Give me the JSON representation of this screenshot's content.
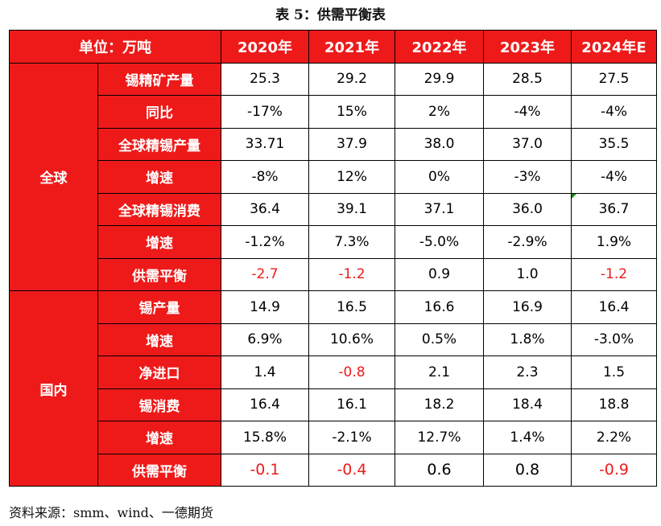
{
  "caption": "表 5：供需平衡表",
  "header": {
    "unit_label": "单位：万吨",
    "years": [
      "2020年",
      "2021年",
      "2022年",
      "2023年",
      "2024年E"
    ]
  },
  "groups": [
    {
      "name": "全球",
      "rows": [
        {
          "label": "锡精矿产量",
          "values": [
            "25.3",
            "29.2",
            "29.9",
            "28.5",
            "27.5"
          ]
        },
        {
          "label": "同比",
          "values": [
            "-17%",
            "15%",
            "2%",
            "-4%",
            "-4%"
          ]
        },
        {
          "label": "全球精锡产量",
          "values": [
            "33.71",
            "37.9",
            "38.0",
            "37.0",
            "35.5"
          ]
        },
        {
          "label": "增速",
          "values": [
            "-8%",
            "12%",
            "0%",
            "-3%",
            "-4%"
          ]
        },
        {
          "label": "全球精锡消费",
          "values": [
            "36.4",
            "39.1",
            "37.1",
            "36.0",
            "36.7"
          ]
        },
        {
          "label": "增速",
          "values": [
            "-1.2%",
            "7.3%",
            "-5.0%",
            "-2.9%",
            "1.9%"
          ]
        },
        {
          "label": "供需平衡",
          "values": [
            "-2.7",
            "-1.2",
            "0.9",
            "1.0",
            "-1.2"
          ]
        }
      ]
    },
    {
      "name": "国内",
      "rows": [
        {
          "label": "锡产量",
          "values": [
            "14.9",
            "16.5",
            "16.6",
            "16.9",
            "16.4"
          ]
        },
        {
          "label": "增速",
          "values": [
            "6.9%",
            "10.6%",
            "0.5%",
            "1.8%",
            "-3.0%"
          ]
        },
        {
          "label": "净进口",
          "values": [
            "1.4",
            "-0.8",
            "2.1",
            "2.3",
            "1.5"
          ]
        },
        {
          "label": "锡消费",
          "values": [
            "16.4",
            "16.1",
            "18.2",
            "18.4",
            "18.8"
          ]
        },
        {
          "label": "增速",
          "values": [
            "15.8%",
            "-2.1%",
            "12.7%",
            "1.4%",
            "2.2%"
          ]
        },
        {
          "label": "供需平衡",
          "values": [
            "-0.1",
            "-0.4",
            "0.6",
            "0.8",
            "-0.9"
          ]
        }
      ]
    }
  ],
  "colors": {
    "header_bg": "#ee1a1a",
    "negative_text": "#ee1a1a"
  },
  "source": "资料来源：smm、wind、一德期货"
}
